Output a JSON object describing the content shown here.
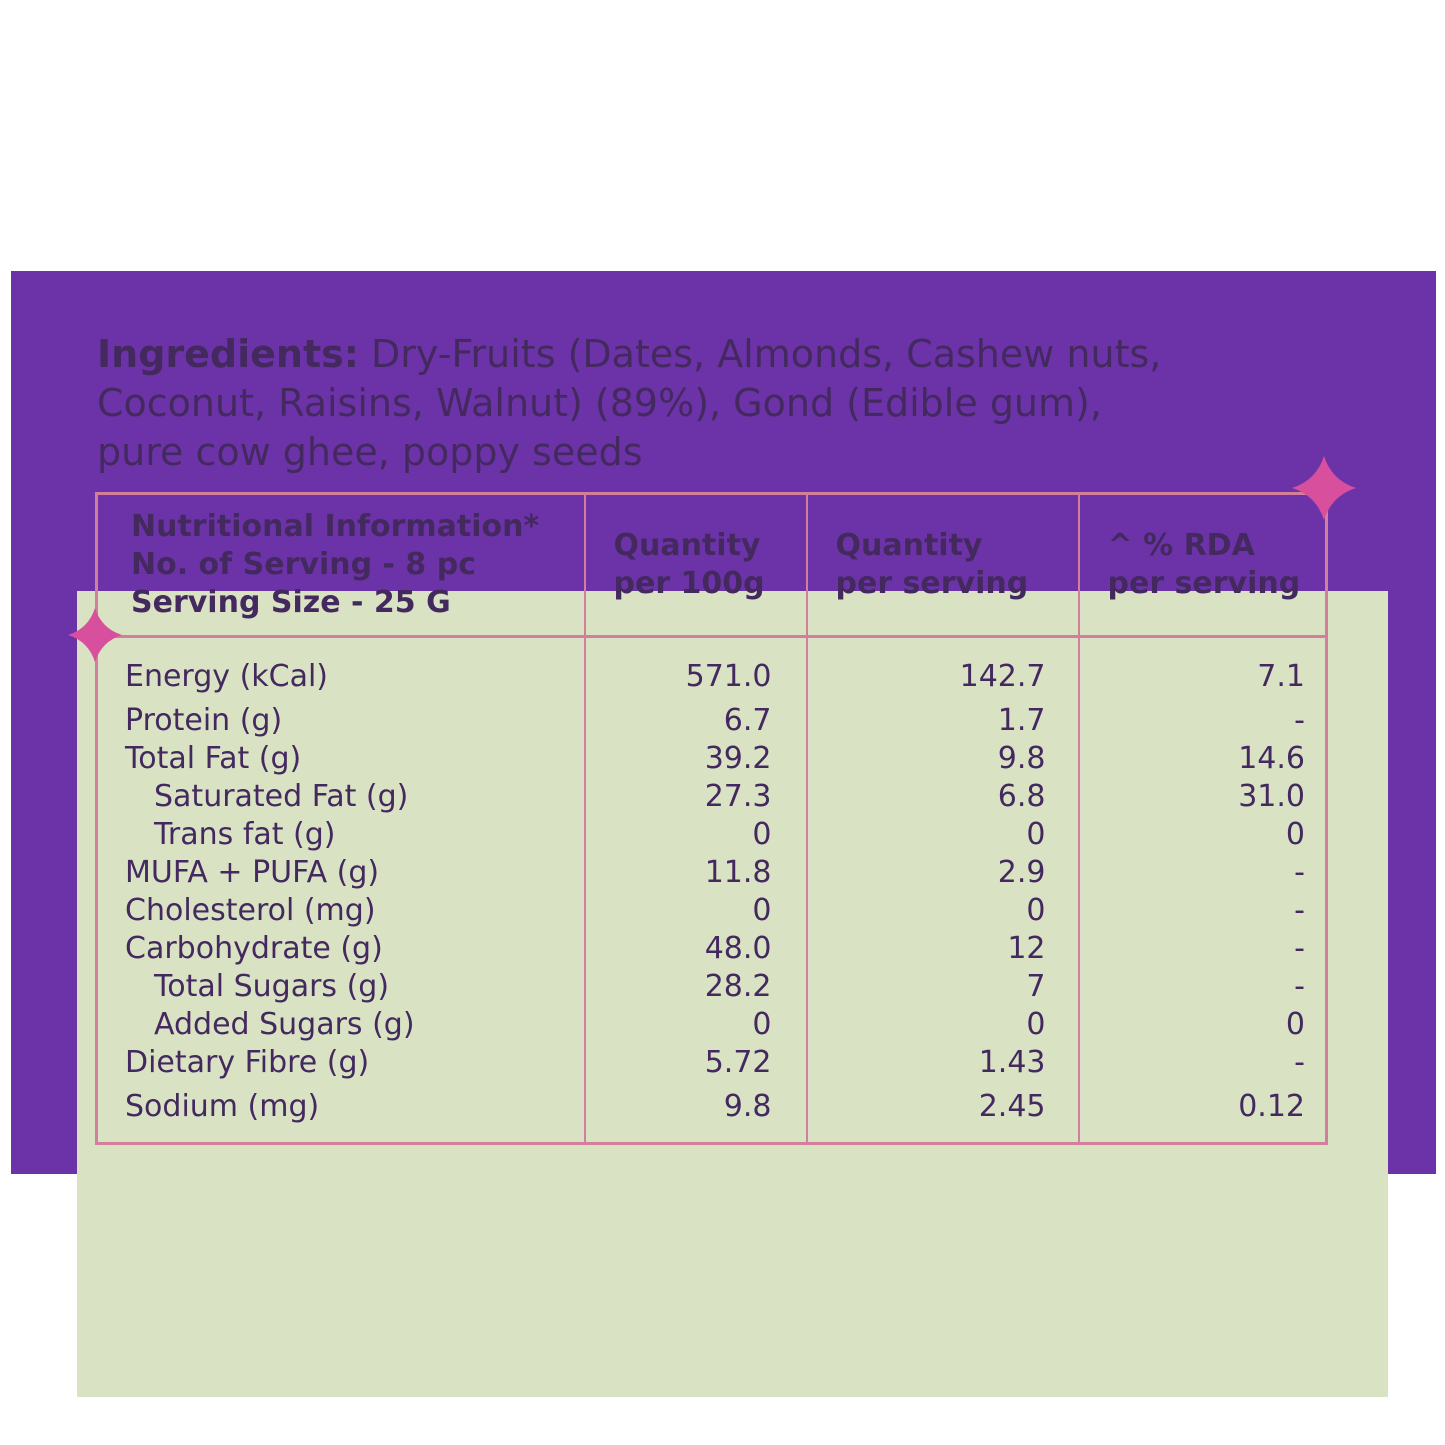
{
  "ingredients": {
    "label": "Ingredients:",
    "line1": "Dry-Fruits (Dates, Almonds, Cashew nuts,",
    "line2": "Coconut, Raisins, Walnut) (89%), Gond (Edible gum),",
    "line3": "pure cow ghee, poppy seeds"
  },
  "table": {
    "header": {
      "info": [
        "Nutritional Information*",
        "No. of Serving - 8 pc",
        "Serving Size - 25 G"
      ],
      "col_per_100g": [
        "Quantity",
        "per 100g"
      ],
      "col_per_serving": [
        "Quantity",
        "per serving"
      ],
      "col_rda": [
        "^ % RDA",
        "per serving"
      ]
    },
    "rows": [
      {
        "label": "Energy (kCal)",
        "indent": false,
        "per_100g": "571.0",
        "per_serving": "142.7",
        "rda": "7.1"
      },
      {
        "label": "Protein (g)",
        "indent": false,
        "per_100g": "6.7",
        "per_serving": "1.7",
        "rda": "-"
      },
      {
        "label": "Total Fat (g)",
        "indent": false,
        "per_100g": "39.2",
        "per_serving": "9.8",
        "rda": "14.6"
      },
      {
        "label": "Saturated Fat (g)",
        "indent": true,
        "per_100g": "27.3",
        "per_serving": "6.8",
        "rda": "31.0"
      },
      {
        "label": "Trans fat (g)",
        "indent": true,
        "per_100g": "0",
        "per_serving": "0",
        "rda": "0"
      },
      {
        "label": "MUFA + PUFA (g)",
        "indent": false,
        "per_100g": "11.8",
        "per_serving": "2.9",
        "rda": "-"
      },
      {
        "label": "Cholesterol (mg)",
        "indent": false,
        "per_100g": "0",
        "per_serving": "0",
        "rda": "-"
      },
      {
        "label": "Carbohydrate (g)",
        "indent": false,
        "per_100g": "48.0",
        "per_serving": "12",
        "rda": "-"
      },
      {
        "label": "Total Sugars (g)",
        "indent": true,
        "per_100g": "28.2",
        "per_serving": "7",
        "rda": "-"
      },
      {
        "label": "Added Sugars (g)",
        "indent": true,
        "per_100g": "0",
        "per_serving": "0",
        "rda": "0"
      },
      {
        "label": "Dietary Fibre (g)",
        "indent": false,
        "per_100g": "5.72",
        "per_serving": "1.43",
        "rda": "-"
      },
      {
        "label": "Sodium (mg)",
        "indent": false,
        "per_100g": "9.8",
        "per_serving": "2.45",
        "rda": "0.12"
      }
    ]
  },
  "colors": {
    "frame_purple": "#6c33a9",
    "panel_green": "#d9e3c4",
    "table_border_pink": "#d37f9b",
    "sparkle_pink": "#d74f9d",
    "text_purple": "#44295f"
  }
}
